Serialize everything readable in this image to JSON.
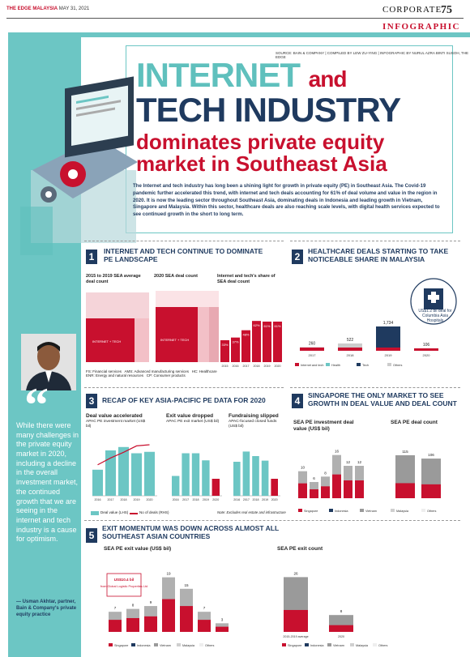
{
  "header": {
    "brand": "THE EDGE MALAYSIA",
    "date": "MAY 31, 2021",
    "section": "CORPORATE",
    "page": "75",
    "category": "INFOGRAPHIC"
  },
  "source_line": "SOURCE: BAIN & COMPANY | COMPILED BY LEW ZU-YING | INFOGRAPHIC BY NURUL AZRA BINTI SUSOH, THE EDGE",
  "title": {
    "line1": "INTERNET",
    "and": "and",
    "line2": "TECH INDUSTRY",
    "line3": "dominates private equity market in Southeast Asia"
  },
  "intro": "The Internet and tech industry has long been a shining light for growth in private equity (PE) in Southeast Asia. The Covid-19 pandemic further accelerated this trend, with internet and tech deals accounting for 61% of deal volume and value in the region in 2020. It is now the leading sector throughout Southeast Asia, dominating deals in Indonesia and leading growth in Vietnam, Singapore and Malaysia. Within this sector, healthcare deals are also reaching scale levels, with digital health services expected to see continued growth in the short to long term.",
  "quote": {
    "text": "While there were many challenges in the private equity market in 2020, including a decline in the overall investment market, the continued growth that we are seeing in the internet and tech industry is a cause for optimism.",
    "attribution": "— Usman Akhtar, partner, Bain & Company's private equity practice"
  },
  "colors": {
    "teal": "#6cc6c4",
    "navy": "#1f3a5f",
    "red": "#c8102e",
    "grey": "#9a9a9a",
    "light": "#cccccc"
  },
  "s1": {
    "num": "1",
    "title": "INTERNET AND TECH CONTINUE TO DOMINATE PE LANDSCAPE",
    "c1_title": "2015 to 2019 SEA average deal count",
    "c2_title": "2020 SEA deal count",
    "c3_title": "Internet and tech's share of SEA deal count",
    "legend": "FS: Financial services   AMS: Advanced manufacturing services   HC: Healthcare\nENR: Energy and natural resources   CP: Consumer products",
    "tile_main": "INTERNET + TECH",
    "share": {
      "type": "bar",
      "categories": [
        "2015",
        "2016",
        "2017",
        "2018",
        "2019",
        "2020"
      ],
      "values": [
        33,
        37,
        48,
        62,
        61,
        61
      ],
      "labels": [
        "33%",
        "37%",
        "48%",
        "62%",
        "61%",
        "61%"
      ]
    }
  },
  "s2": {
    "num": "2",
    "title": "HEALTHCARE DEALS STARTING TO TAKE NOTICEABLE SHARE IN MALAYSIA",
    "note": "US$1.2 bil deal for Columbia Asia Hospitals",
    "chart_data": {
      "type": "bar",
      "categories": [
        "2017",
        "2018",
        "2019",
        "2020"
      ],
      "values": [
        260,
        522,
        1734,
        106
      ],
      "labels": [
        "260",
        "522",
        "1,734",
        "106"
      ],
      "legend": [
        "Internet and tech",
        "Health",
        "Tech",
        "Others"
      ]
    }
  },
  "s3": {
    "num": "3",
    "title": "RECAP OF KEY ASIA-PACIFIC PE DATA FOR 2020",
    "c1_title": "Deal value accelerated",
    "c1_sub": "APAC PE investment market (US$ bil)",
    "c2_title": "Exit value dropped",
    "c2_sub": "APAC PE exit market (US$ bil)",
    "c3_title": "Fundraising slipped",
    "c3_sub": "APAC-focused closed funds (US$ bil)",
    "legend_a": "Deal value (LHS)",
    "legend_b": "No of deals (RHS)",
    "note": "Note: Excludes real estate and infrastructure",
    "chart_data": [
      {
        "type": "bar",
        "categories": [
          "2016",
          "2017",
          "2018",
          "2019",
          "2020"
        ],
        "values": [
          92,
          160,
          172,
          150,
          155
        ],
        "line": [
          820,
          1000,
          1150,
          1320,
          1350
        ]
      },
      {
        "type": "bar",
        "categories": [
          "2016",
          "2017",
          "2018",
          "2019",
          "2020"
        ],
        "values": [
          70,
          150,
          150,
          125,
          60
        ]
      },
      {
        "type": "bar",
        "categories": [
          "2016",
          "2017",
          "2018",
          "2019",
          "2020"
        ],
        "values": [
          60,
          78,
          70,
          62,
          30
        ]
      }
    ]
  },
  "s4": {
    "num": "4",
    "title": "SINGAPORE THE ONLY MARKET TO SEE GROWTH IN DEAL VALUE AND DEAL COUNT",
    "c1_title": "SEA PE investment deal value (US$ bil)",
    "c2_title": "SEA PE deal count",
    "c1_values": [
      "10",
      "6",
      "8",
      "16",
      "12",
      "12"
    ],
    "c2_values": [
      "115",
      "106"
    ],
    "legend": [
      "Singapore",
      "Indonesia",
      "Vietnam",
      "Malaysia",
      "Others"
    ]
  },
  "s5": {
    "num": "5",
    "title": "EXIT MOMENTUM WAS DOWN ACROSS ALMOST ALL SOUTHEAST ASIAN COUNTRIES",
    "c1_title": "SEA PE exit value (US$ bil)",
    "c2_title": "SEA PE exit count",
    "callout": "US$10.4 bil from Global Logistic Properties Ltd",
    "c1_values": [
      "7",
      "8",
      "9",
      "19",
      "15",
      "7",
      "3"
    ],
    "c2_values": [
      "26",
      "8"
    ],
    "c2_cats": [
      "2015-2019 average",
      "2020"
    ],
    "legend": [
      "Singapore",
      "Indonesia",
      "Vietnam",
      "Malaysia",
      "Others"
    ]
  }
}
